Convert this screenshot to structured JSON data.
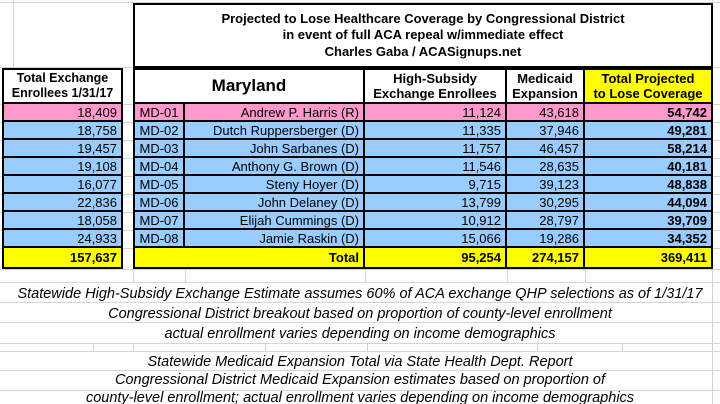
{
  "title": {
    "line1": "Projected to Lose Healthcare Coverage by Congressional District",
    "line2": "in event of full ACA repeal w/immediate effect",
    "line3": "Charles Gaba / ACASignups.net"
  },
  "left": {
    "header_line1": "Total Exchange",
    "header_line2": "Enrollees 1/31/17",
    "values": [
      "18,409",
      "18,758",
      "19,457",
      "19,108",
      "16,077",
      "22,836",
      "18,058",
      "24,933"
    ],
    "total": "157,637"
  },
  "main": {
    "state": "Maryland",
    "headers": {
      "exchange_line1": "High-Subsidy",
      "exchange_line2": "Exchange Enrollees",
      "medicaid_line1": "Medicaid",
      "medicaid_line2": "Expansion",
      "total_line1": "Total Projected",
      "total_line2": "to Lose Coverage"
    },
    "rows": [
      {
        "district": "MD-01",
        "rep": "Andrew P. Harris (R)",
        "party": "R",
        "exchange": "11,124",
        "medicaid": "43,618",
        "total": "54,742"
      },
      {
        "district": "MD-02",
        "rep": "Dutch Ruppersberger (D)",
        "party": "D",
        "exchange": "11,335",
        "medicaid": "37,946",
        "total": "49,281"
      },
      {
        "district": "MD-03",
        "rep": "John Sarbanes (D)",
        "party": "D",
        "exchange": "11,757",
        "medicaid": "46,457",
        "total": "58,214"
      },
      {
        "district": "MD-04",
        "rep": "Anthony G. Brown (D)",
        "party": "D",
        "exchange": "11,546",
        "medicaid": "28,635",
        "total": "40,181"
      },
      {
        "district": "MD-05",
        "rep": "Steny Hoyer (D)",
        "party": "D",
        "exchange": "9,715",
        "medicaid": "39,123",
        "total": "48,838"
      },
      {
        "district": "MD-06",
        "rep": "John Delaney (D)",
        "party": "D",
        "exchange": "13,799",
        "medicaid": "30,295",
        "total": "44,094"
      },
      {
        "district": "MD-07",
        "rep": "Elijah Cummings (D)",
        "party": "D",
        "exchange": "10,912",
        "medicaid": "28,797",
        "total": "39,709"
      },
      {
        "district": "MD-08",
        "rep": "Jamie Raskin (D)",
        "party": "D",
        "exchange": "15,066",
        "medicaid": "19,286",
        "total": "34,352"
      }
    ],
    "total_row": {
      "label": "Total",
      "exchange": "95,254",
      "medicaid": "274,157",
      "total": "369,411"
    }
  },
  "notes": {
    "block1": [
      "Statewide High-Subsidy Exchange Estimate assumes 60% of ACA exchange QHP selections as of 1/31/17",
      "Congressional District breakout based on proportion of county-level enrollment",
      "actual enrollment varies depending on income demographics"
    ],
    "block2": [
      "Statewide Medicaid Expansion Total via State Health Dept. Report",
      "Congressional District Medicaid Expansion estimates based on proportion of",
      "county-level enrollment; actual enrollment varies depending on income demographics"
    ]
  },
  "colors": {
    "republican_row": "#FF99CC",
    "democrat_row": "#99CCFF",
    "total_row": "#FFFF00",
    "header_highlight": "#FFFF00",
    "gridline": "#d4d4d4"
  }
}
